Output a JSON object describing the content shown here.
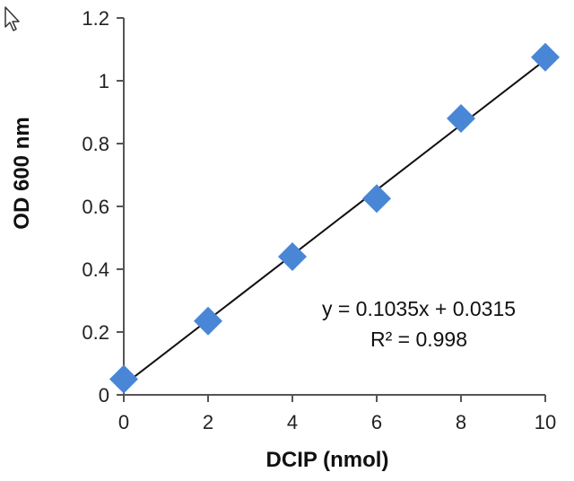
{
  "chart_data": {
    "type": "scatter",
    "xlabel": "DCIP (nmol)",
    "ylabel": "OD 600 nm",
    "xlim": [
      0,
      10
    ],
    "ylim": [
      0,
      1.2
    ],
    "xticks": [
      "0",
      "2",
      "4",
      "6",
      "8",
      "10"
    ],
    "yticks": [
      "0",
      "0.2",
      "0.4",
      "0.6",
      "0.8",
      "1",
      "1.2"
    ],
    "marker": "diamond",
    "marker_color": "#4a86d6",
    "line_color": "#111111",
    "points": [
      {
        "x": 0,
        "y": 0.05
      },
      {
        "x": 2,
        "y": 0.235
      },
      {
        "x": 4,
        "y": 0.44
      },
      {
        "x": 6,
        "y": 0.625
      },
      {
        "x": 8,
        "y": 0.88
      },
      {
        "x": 10,
        "y": 1.075
      }
    ],
    "trendline": {
      "slope": 0.1035,
      "intercept": 0.0315,
      "x_range": [
        0,
        10
      ]
    },
    "annotation": {
      "equation": "y = 0.1035x + 0.0315",
      "r_squared": "R² = 0.998"
    }
  }
}
